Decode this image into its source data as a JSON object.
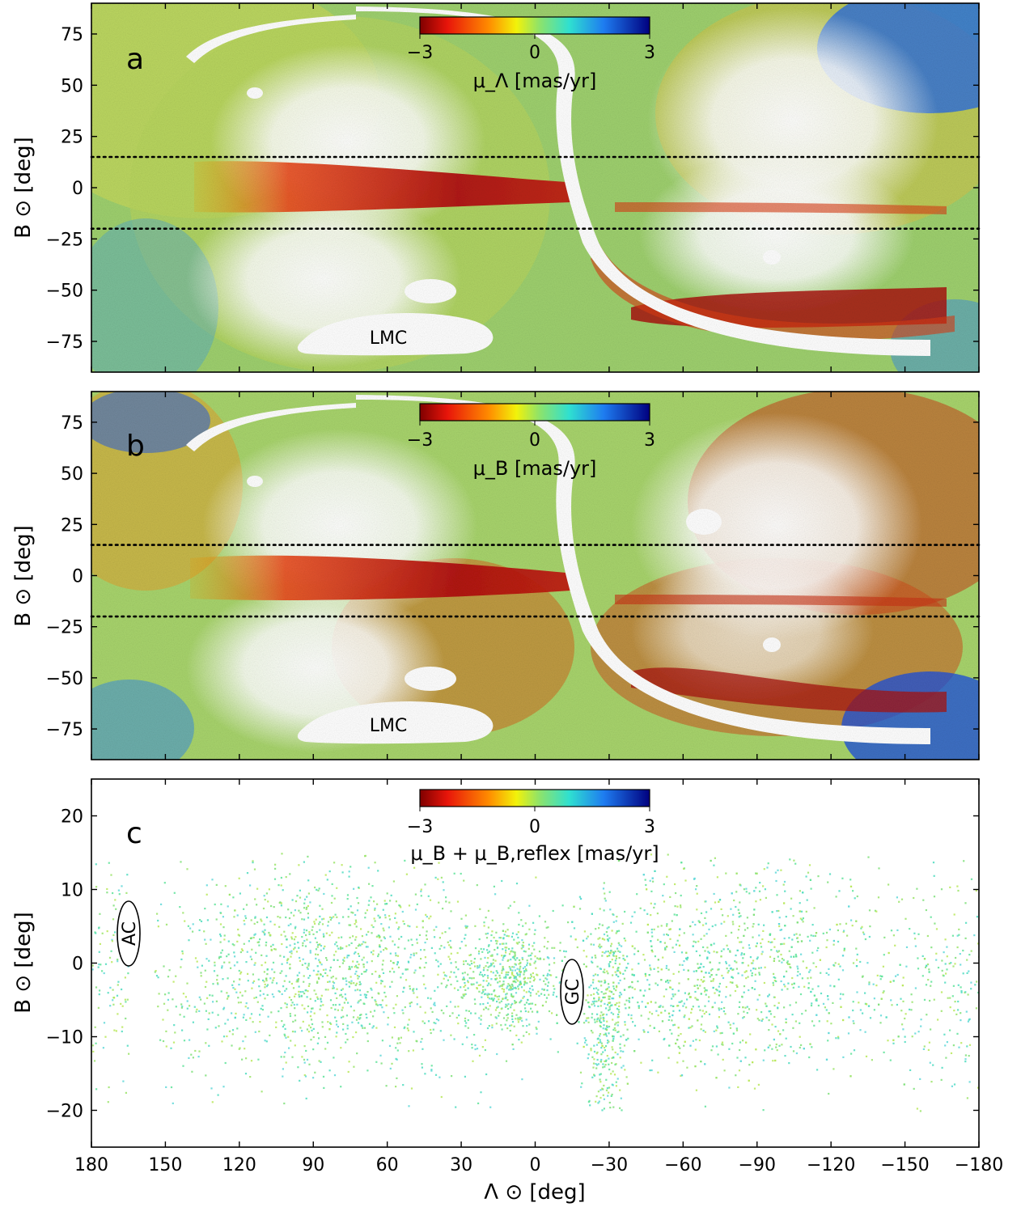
{
  "chart_data": [
    {
      "type": "heatmap",
      "panel_label": "a",
      "ylabel": "B ⊙ [deg]",
      "ylim": [
        -90,
        90
      ],
      "yticks": [
        75,
        50,
        25,
        0,
        -25,
        -50,
        -75
      ],
      "ytick_labels": [
        "75",
        "50",
        "25",
        "0",
        "−25",
        "−50",
        "−75"
      ],
      "xlim": [
        180,
        -180
      ],
      "colorbar": {
        "label": "μ_Λ [mas/yr]",
        "min": -3,
        "max": 3,
        "ticks": [
          "−3",
          "0",
          "3"
        ],
        "colormap": "jet_r"
      },
      "reference_lines_B": [
        15,
        -20
      ],
      "annotations": [
        {
          "text": "LMC",
          "x": 100,
          "y": -74
        }
      ],
      "features": [
        {
          "name": "dominant-band",
          "lambda_range": [
            150,
            15
          ],
          "b_center": 0,
          "value": -2.6
        },
        {
          "name": "lower-ring",
          "lambda_range": [
            -45,
            -160
          ],
          "b_center": -60,
          "value": -2.4
        },
        {
          "name": "upper-band-right",
          "lambda_range": [
            -120,
            -170
          ],
          "b_center": -12,
          "value": -2.2
        }
      ]
    },
    {
      "type": "heatmap",
      "panel_label": "b",
      "ylabel": "B ⊙ [deg]",
      "ylim": [
        -90,
        90
      ],
      "yticks": [
        75,
        50,
        25,
        0,
        -25,
        -50,
        -75
      ],
      "ytick_labels": [
        "75",
        "50",
        "25",
        "0",
        "−25",
        "−50",
        "−75"
      ],
      "xlim": [
        180,
        -180
      ],
      "colorbar": {
        "label": "μ_B [mas/yr]",
        "min": -3,
        "max": 3,
        "ticks": [
          "−3",
          "0",
          "3"
        ],
        "colormap": "jet_r"
      },
      "reference_lines_B": [
        15,
        -20
      ],
      "annotations": [
        {
          "text": "LMC",
          "x": 100,
          "y": -74
        }
      ],
      "features": [
        {
          "name": "dominant-band",
          "lambda_range": [
            150,
            15
          ],
          "b_center": 0,
          "value": -2.4
        },
        {
          "name": "lower-arc",
          "lambda_range": [
            -30,
            -140
          ],
          "b_center": -50,
          "value": -2.5
        },
        {
          "name": "upper-right-lobe",
          "lambda_range": [
            -30,
            -140
          ],
          "b_center": 45,
          "value": -2.0
        }
      ]
    },
    {
      "type": "scatter",
      "panel_label": "c",
      "ylabel": "B ⊙ [deg]",
      "xlabel": "Λ ⊙ [deg]",
      "ylim": [
        -25,
        25
      ],
      "yticks": [
        20,
        10,
        0,
        -10,
        -20
      ],
      "ytick_labels": [
        "20",
        "10",
        "0",
        "−10",
        "−20"
      ],
      "xlim": [
        180,
        -180
      ],
      "xticks": [
        180,
        150,
        120,
        90,
        60,
        30,
        0,
        -30,
        -60,
        -90,
        -120,
        -150,
        -180
      ],
      "xtick_labels": [
        "180",
        "150",
        "120",
        "90",
        "60",
        "30",
        "0",
        "−30",
        "−60",
        "−90",
        "−120",
        "−150",
        "−180"
      ],
      "colorbar": {
        "label": "μ_B + μ_B,reflex [mas/yr]",
        "min": -3,
        "max": 3,
        "ticks": [
          "−3",
          "0",
          "3"
        ],
        "colormap": "jet_r"
      },
      "annotations": [
        {
          "text": "AC",
          "x": 166,
          "y": 4
        },
        {
          "text": "GC",
          "x": -15,
          "y": -4
        }
      ],
      "selection_range_B": [
        -20,
        15
      ],
      "typical_value": 0.2
    }
  ]
}
